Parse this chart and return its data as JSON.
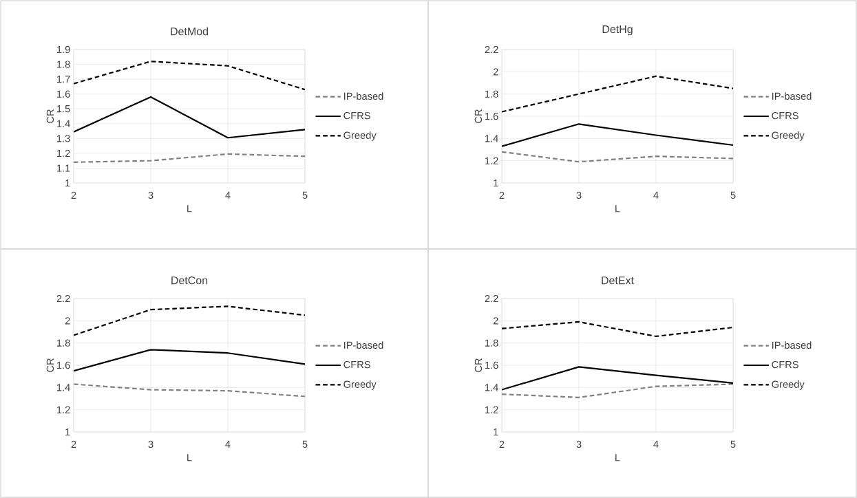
{
  "chart_data": [
    {
      "type": "line",
      "title": "DetMod",
      "xlabel": "L",
      "ylabel": "CR",
      "categories": [
        "2",
        "3",
        "4",
        "5"
      ],
      "ylim": [
        1,
        1.9
      ],
      "yticks": [
        1,
        1.1,
        1.2,
        1.3,
        1.4,
        1.5,
        1.6,
        1.7,
        1.8,
        1.9
      ],
      "grid": true,
      "legend": "right",
      "series": [
        {
          "name": "IP-based",
          "color": "#808080",
          "line_style": "dashed",
          "values": [
            1.14,
            1.15,
            1.195,
            1.18
          ]
        },
        {
          "name": "CFRS",
          "color": "#000000",
          "line_style": "solid",
          "values": [
            1.345,
            1.58,
            1.305,
            1.36
          ]
        },
        {
          "name": "Greedy",
          "color": "#000000",
          "line_style": "dashed",
          "values": [
            1.67,
            1.82,
            1.79,
            1.63
          ]
        }
      ]
    },
    {
      "type": "line",
      "title": "DetHg",
      "xlabel": "L",
      "ylabel": "CR",
      "categories": [
        "2",
        "3",
        "4",
        "5"
      ],
      "ylim": [
        1,
        2.2
      ],
      "yticks": [
        1,
        1.2,
        1.4,
        1.6,
        1.8,
        2,
        2.2
      ],
      "grid": true,
      "legend": "right",
      "series": [
        {
          "name": "IP-based",
          "color": "#808080",
          "line_style": "dashed",
          "values": [
            1.28,
            1.19,
            1.24,
            1.22
          ]
        },
        {
          "name": "CFRS",
          "color": "#000000",
          "line_style": "solid",
          "values": [
            1.33,
            1.53,
            1.43,
            1.34
          ]
        },
        {
          "name": "Greedy",
          "color": "#000000",
          "line_style": "dashed",
          "values": [
            1.64,
            1.8,
            1.96,
            1.85
          ]
        }
      ]
    },
    {
      "type": "line",
      "title": "DetCon",
      "xlabel": "L",
      "ylabel": "CR",
      "categories": [
        "2",
        "3",
        "4",
        "5"
      ],
      "ylim": [
        1,
        2.2
      ],
      "yticks": [
        1,
        1.2,
        1.4,
        1.6,
        1.8,
        2,
        2.2
      ],
      "grid": true,
      "legend": "right",
      "series": [
        {
          "name": "IP-based",
          "color": "#808080",
          "line_style": "dashed",
          "values": [
            1.43,
            1.38,
            1.37,
            1.32
          ]
        },
        {
          "name": "CFRS",
          "color": "#000000",
          "line_style": "solid",
          "values": [
            1.55,
            1.74,
            1.71,
            1.61
          ]
        },
        {
          "name": "Greedy",
          "color": "#000000",
          "line_style": "dashed",
          "values": [
            1.87,
            2.1,
            2.13,
            2.05
          ]
        }
      ]
    },
    {
      "type": "line",
      "title": "DetExt",
      "xlabel": "L",
      "ylabel": "CR",
      "categories": [
        "2",
        "3",
        "4",
        "5"
      ],
      "ylim": [
        1,
        2.2
      ],
      "yticks": [
        1,
        1.2,
        1.4,
        1.6,
        1.8,
        2,
        2.2
      ],
      "grid": true,
      "legend": "right",
      "series": [
        {
          "name": "IP-based",
          "color": "#808080",
          "line_style": "dashed",
          "values": [
            1.34,
            1.31,
            1.41,
            1.43
          ]
        },
        {
          "name": "CFRS",
          "color": "#000000",
          "line_style": "solid",
          "values": [
            1.38,
            1.585,
            1.51,
            1.44
          ]
        },
        {
          "name": "Greedy",
          "color": "#000000",
          "line_style": "dashed",
          "values": [
            1.93,
            1.99,
            1.86,
            1.94
          ]
        }
      ]
    }
  ]
}
